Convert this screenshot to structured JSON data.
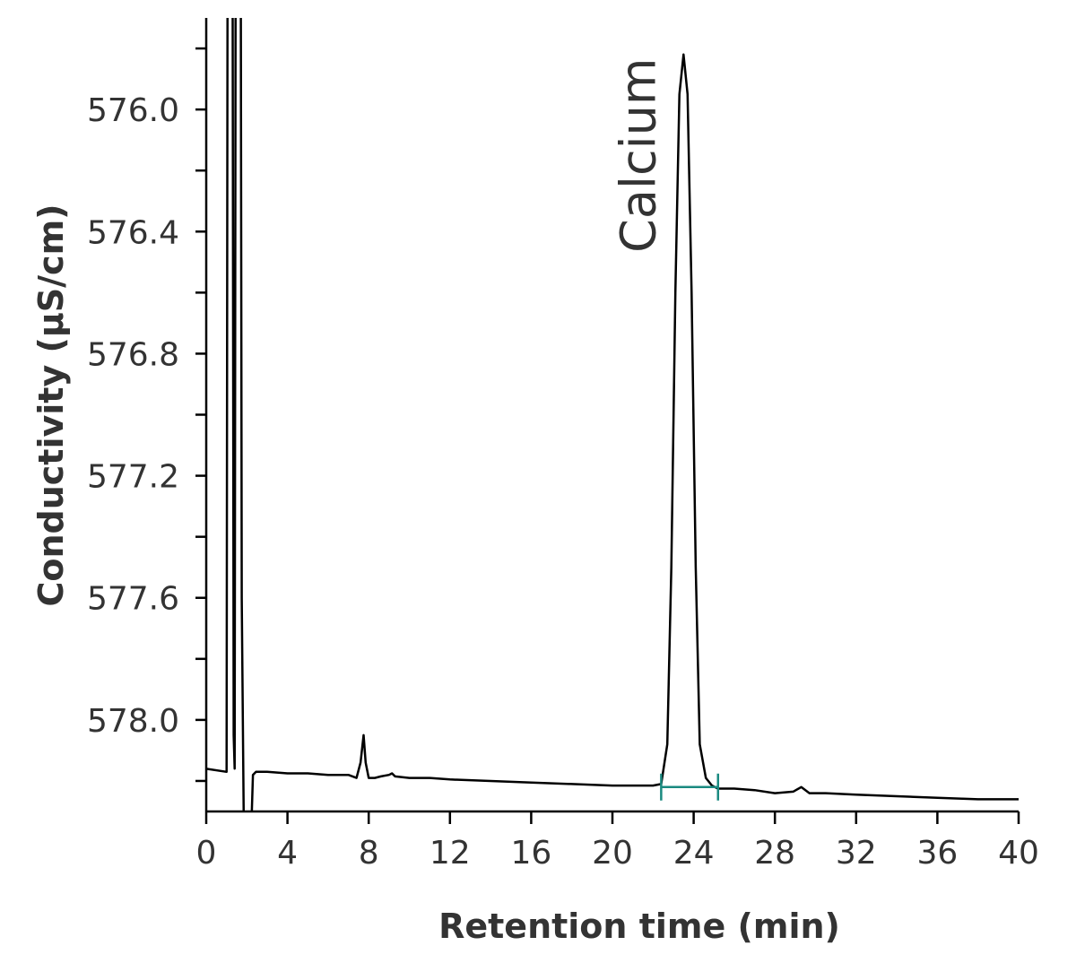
{
  "chart_data": {
    "type": "line",
    "xlabel": "Retention time (min)",
    "ylabel": "Conductivity (µS/cm)",
    "xlim": [
      0,
      40
    ],
    "ylim": [
      578.3,
      575.7
    ],
    "y_axis_inverted": true,
    "x_ticks": [
      0,
      4,
      8,
      12,
      16,
      20,
      24,
      28,
      32,
      36,
      40
    ],
    "x_tick_labels": [
      "0",
      "4",
      "8",
      "12",
      "16",
      "20",
      "24",
      "28",
      "32",
      "36",
      "40"
    ],
    "y_ticks": [
      576.0,
      576.4,
      576.8,
      577.2,
      577.6,
      578.0
    ],
    "y_tick_labels": [
      "576.0",
      "576.4",
      "576.8",
      "577.2",
      "577.6",
      "578.0"
    ],
    "y_minor_ticks": [
      575.8,
      576.2,
      576.6,
      577.0,
      577.4,
      577.8,
      578.2
    ],
    "grid": false,
    "series": [
      {
        "color": "#000000",
        "x": [
          0,
          1.0,
          1.05,
          1.1,
          1.2,
          1.3,
          1.35,
          1.4,
          1.45,
          1.55,
          1.6,
          1.7,
          1.75,
          1.85,
          1.95,
          2.0,
          2.2,
          2.3,
          2.45,
          2.6,
          3,
          4,
          5,
          6,
          7,
          7.4,
          7.6,
          7.75,
          7.85,
          8.0,
          8.3,
          8.6,
          9,
          9.15,
          9.3,
          10,
          11,
          12,
          14,
          16,
          18,
          20,
          22,
          22.4,
          22.7,
          22.9,
          23.1,
          23.3,
          23.5,
          23.7,
          23.9,
          24.1,
          24.3,
          24.6,
          24.9,
          25.2,
          26,
          27,
          28,
          28.9,
          29.3,
          29.7,
          30.5,
          32,
          34,
          36,
          38,
          40
        ],
        "y": [
          578.16,
          578.17,
          575.5,
          575.5,
          575.5,
          575.5,
          578.05,
          578.16,
          575.5,
          575.5,
          575.5,
          575.5,
          577.6,
          578.35,
          578.4,
          578.4,
          578.4,
          578.18,
          578.17,
          578.17,
          578.17,
          578.175,
          578.175,
          578.18,
          578.18,
          578.19,
          578.14,
          578.05,
          578.14,
          578.19,
          578.19,
          578.185,
          578.18,
          578.175,
          578.185,
          578.19,
          578.19,
          578.195,
          578.2,
          578.205,
          578.21,
          578.215,
          578.215,
          578.21,
          578.08,
          577.5,
          576.6,
          575.95,
          575.82,
          575.95,
          576.6,
          577.5,
          578.08,
          578.19,
          578.215,
          578.225,
          578.225,
          578.23,
          578.24,
          578.235,
          578.22,
          578.24,
          578.24,
          578.245,
          578.25,
          578.255,
          578.26,
          578.26
        ]
      }
    ],
    "annotations": [
      {
        "text": "Calcium",
        "x": 22.1,
        "y": 576.15,
        "orientation": "vertical"
      }
    ],
    "integration_markers": [
      {
        "x_start": 22.4,
        "x_end": 25.2,
        "y": 578.22,
        "color": "#1a8a80"
      }
    ]
  }
}
